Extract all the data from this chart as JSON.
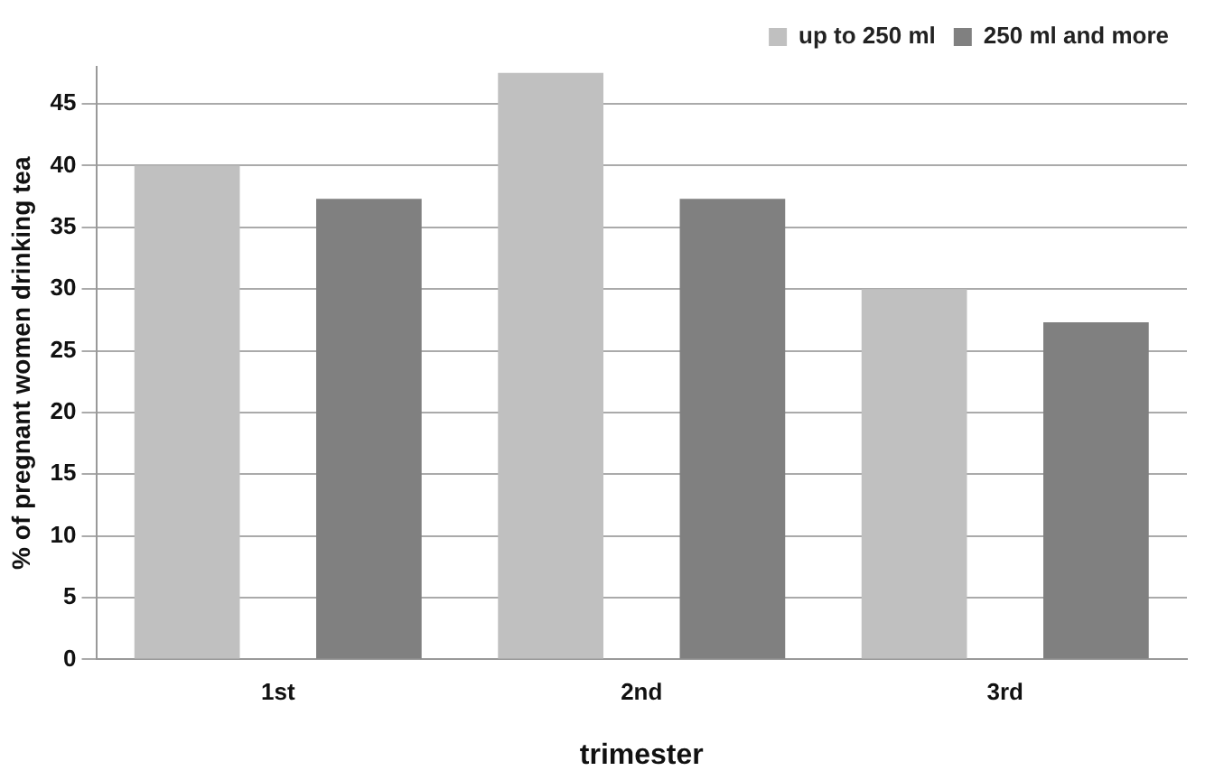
{
  "chart_data": {
    "type": "bar",
    "xlabel": "trimester",
    "ylabel": "% of pregnant women drinking tea",
    "categories": [
      "1st",
      "2nd",
      "3rd"
    ],
    "series": [
      {
        "name": "up to 250 ml",
        "color": "#c0c0c0",
        "values": [
          40,
          47.5,
          30
        ]
      },
      {
        "name": "250 ml and more",
        "color": "#808080",
        "values": [
          37.3,
          37.3,
          27.3
        ]
      }
    ],
    "ylim": [
      0,
      48
    ],
    "yticks": [
      0,
      5,
      10,
      15,
      20,
      25,
      30,
      35,
      40,
      45
    ],
    "grid": "y",
    "legend": "top right"
  }
}
